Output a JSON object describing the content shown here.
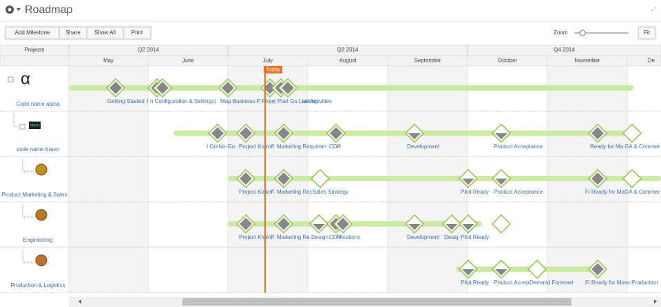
{
  "header": {
    "title": "Roadmap"
  },
  "toolbar": {
    "buttons": [
      "Add Milestone",
      "Share",
      "Show All",
      "Print"
    ],
    "zoom": "Zoom",
    "fit": "Fit"
  },
  "timeline": {
    "projects_header": "Projects",
    "quarters": [
      "Q2 2014",
      "Q3 2014",
      "Q4 2014"
    ],
    "months": [
      "May",
      "June",
      "July",
      "August",
      "September",
      "October",
      "November",
      "De"
    ],
    "today": "Today"
  },
  "projects": [
    {
      "name": "Code name alpha",
      "icon": "α",
      "milestones": [
        {
          "label": "Getting Started",
          "style": "filled"
        },
        {
          "label": "I",
          "style": "filled"
        },
        {
          "label": "n Configuration & Settings)",
          "style": "filled"
        },
        {
          "label": "Map Business P",
          "style": "filled"
        },
        {
          "label": "Proje",
          "style": "filled"
        },
        {
          "label": "( Post Go Live Activities",
          "style": "filled"
        },
        {
          "label": "aining",
          "style": "filled"
        }
      ]
    },
    {
      "name": "code name bravo",
      "icon": "bravo",
      "milestones": [
        {
          "label": "I Go\\No-Go",
          "style": "filled"
        },
        {
          "label": "Project Kickoff",
          "style": "filled"
        },
        {
          "label": "Marketing Requirem",
          "style": "filled"
        },
        {
          "label": "CDR",
          "style": "filled"
        },
        {
          "label": "Development",
          "style": "triangle"
        },
        {
          "label": "Product Acceptance",
          "style": "triangle"
        },
        {
          "label": "Ready for Ma",
          "style": "filled"
        },
        {
          "label": "GA & Commer",
          "style": "hollow"
        }
      ]
    },
    {
      "name": "Product Marketing & Sales",
      "milestones": [
        {
          "label": "Project Kickoff",
          "style": "filled"
        },
        {
          "label": "Marketing Rec",
          "style": "filled"
        },
        {
          "label": "Sales Strategy",
          "style": "hollow"
        },
        {
          "label": "Pilot Ready",
          "style": "triangle"
        },
        {
          "label": "Product Acceptance",
          "style": "triangle"
        },
        {
          "label": "Fi Ready for Ma",
          "style": "filled"
        },
        {
          "label": "GA & Commer",
          "style": "hollow"
        }
      ]
    },
    {
      "name": "Engineering",
      "milestones": [
        {
          "label": "Project Kickoff",
          "style": "filled"
        },
        {
          "label": "Marketing Re",
          "style": "filled"
        },
        {
          "label": "Design",
          "style": "triangle"
        },
        {
          "label": "CDR",
          "style": "filled"
        },
        {
          "label": "ifications",
          "style": "filled"
        },
        {
          "label": "Development",
          "style": "triangle"
        },
        {
          "label": "Desig",
          "style": "triangle"
        },
        {
          "label": "Pilot Ready",
          "style": "triangle"
        },
        {
          "style": "hollow"
        }
      ]
    },
    {
      "name": "Production & Logistics",
      "milestones": [
        {
          "label": "Pilot Ready",
          "style": "triangle"
        },
        {
          "label": "Product Accep",
          "style": "triangle"
        },
        {
          "label": "Demand Forecast",
          "style": "hollow"
        },
        {
          "label": "Fi Ready for Mass Production",
          "style": "filled"
        }
      ]
    }
  ]
}
